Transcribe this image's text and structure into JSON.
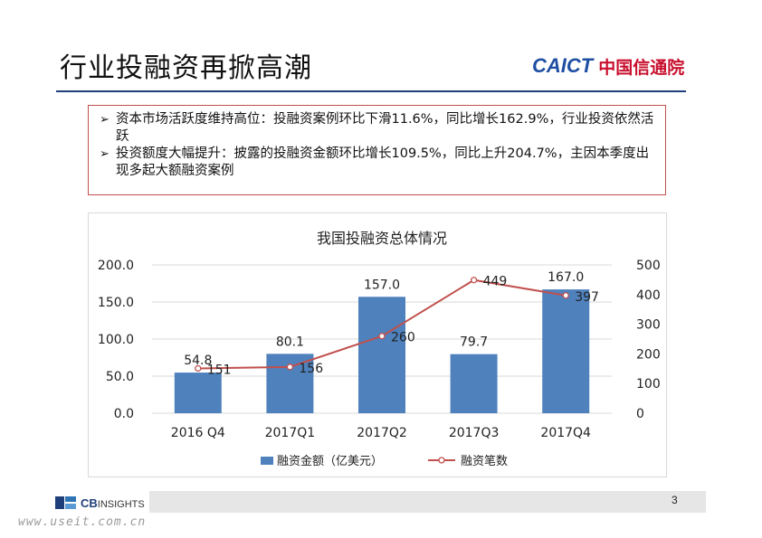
{
  "header": {
    "title": "行业投融资再掀高潮",
    "logo_en": "CAICT",
    "logo_cn": "中国信通院"
  },
  "bullets": [
    "资本市场活跃度维持高位：投融资案例环比下滑11.6%，同比增长162.9%，行业投资依然活跃",
    "投资额度大幅提升：披露的投融资金额环比增长109.5%，同比上升204.7%，主因本季度出现多起大额融资案例"
  ],
  "chart_data": {
    "type": "bar+line",
    "title": "我国投融资总体情况",
    "categories": [
      "2016 Q4",
      "2017Q1",
      "2017Q2",
      "2017Q3",
      "2017Q4"
    ],
    "series": [
      {
        "name": "融资金额（亿美元）",
        "type": "bar",
        "axis": "left",
        "values": [
          54.8,
          80.1,
          157.0,
          79.7,
          167.0
        ],
        "labels": [
          "54.8",
          "80.1",
          "157.0",
          "79.7",
          "167.0"
        ],
        "color": "#4f81bd"
      },
      {
        "name": "融资笔数",
        "type": "line",
        "axis": "right",
        "values": [
          151,
          156,
          260,
          449,
          397
        ],
        "labels": [
          "151",
          "156",
          "260",
          "449",
          "397"
        ],
        "color": "#c0504d"
      }
    ],
    "y_left": {
      "min": 0,
      "max": 200,
      "ticks": [
        "0.0",
        "50.0",
        "100.0",
        "150.0",
        "200.0"
      ]
    },
    "y_right": {
      "min": 0,
      "max": 500,
      "ticks": [
        "0",
        "100",
        "200",
        "300",
        "400",
        "500"
      ]
    },
    "gridlines": true,
    "legend": "bottom"
  },
  "footer": {
    "page_number": "3",
    "cb_main": "CB",
    "cb_sub": "INSIGHTS",
    "watermark": "www.useit.com.cn"
  }
}
